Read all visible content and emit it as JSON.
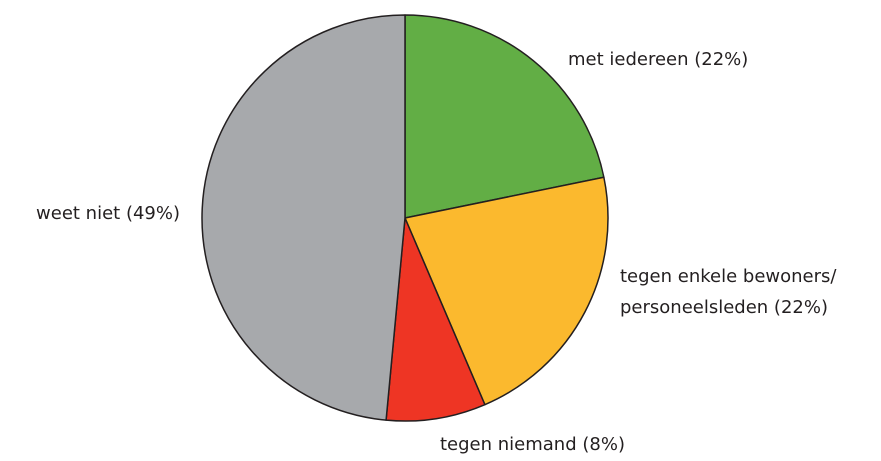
{
  "chart_data": {
    "type": "pie",
    "categories": [
      "met iedereen (22%)",
      "tegen enkele bewoners/\npersoneelsleden (22%)",
      "tegen niemand (8%)",
      "weet niet (49%)"
    ],
    "values": [
      22,
      22,
      8,
      49
    ],
    "colors": [
      "#62ae45",
      "#fbb92e",
      "#ee3524",
      "#a7a9ac"
    ]
  }
}
